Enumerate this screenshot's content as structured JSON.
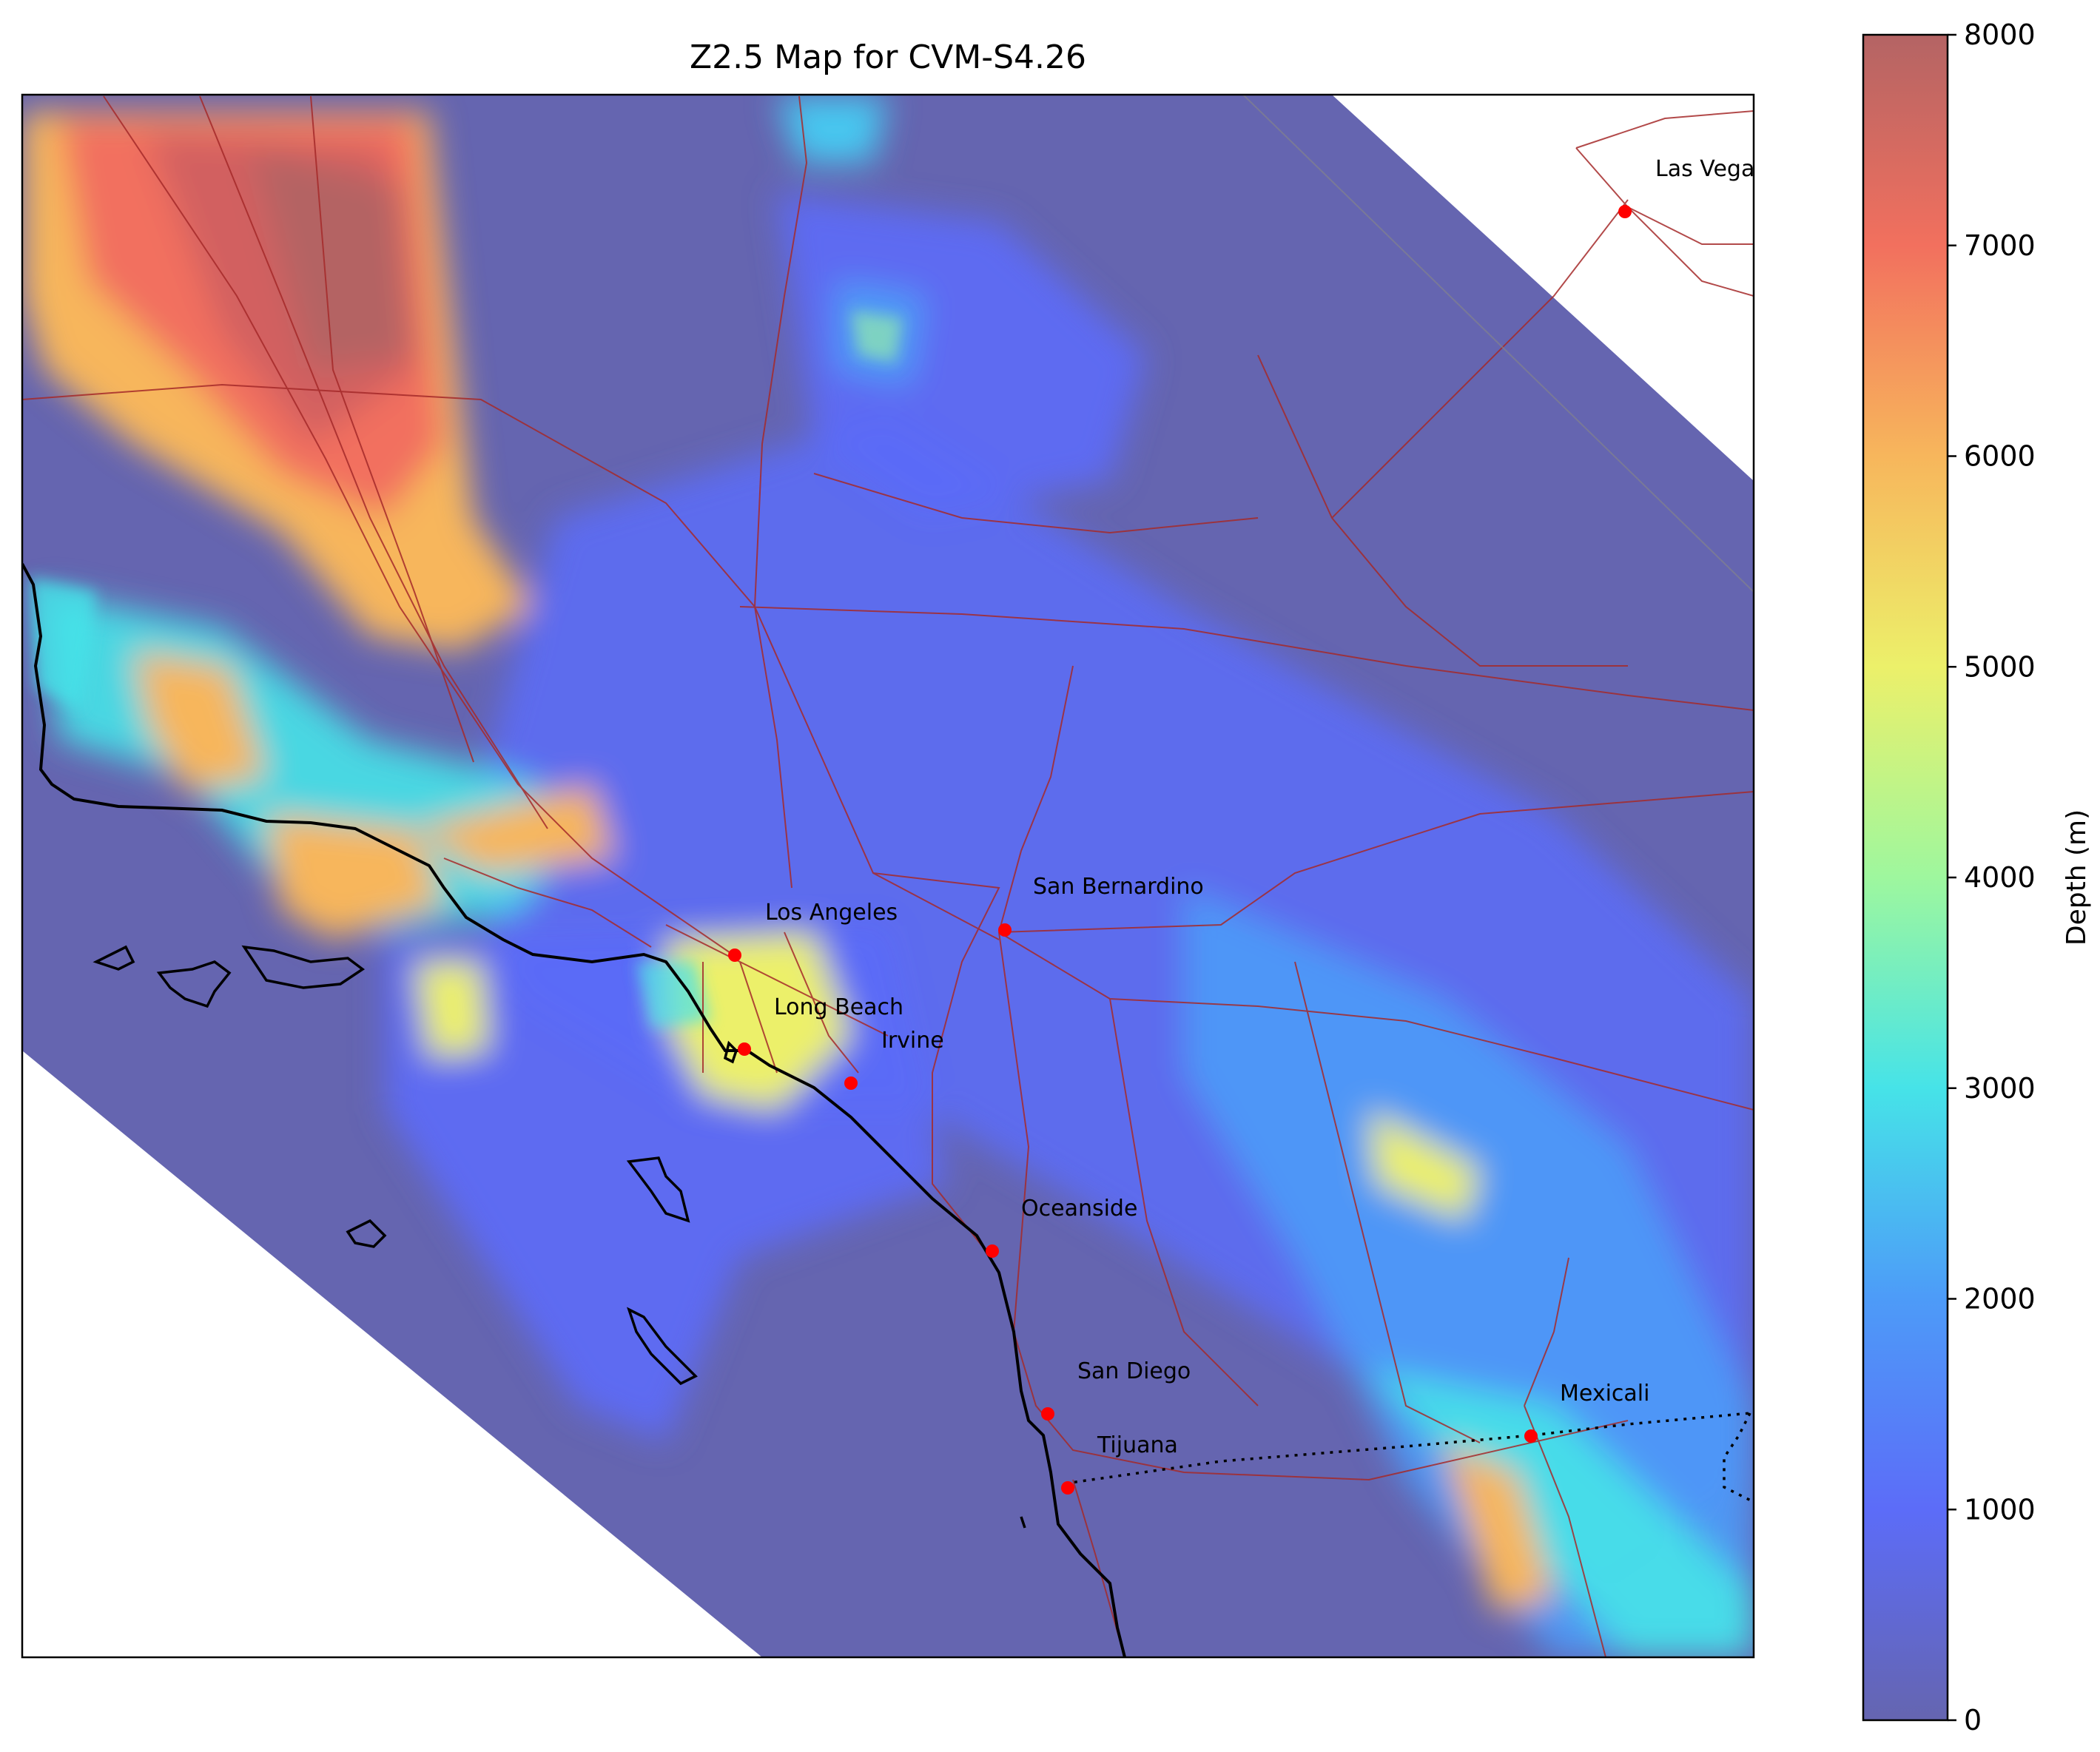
{
  "title": "Z2.5 Map for CVM-S4.26",
  "colorbar": {
    "label": "Depth (m)",
    "min": 0,
    "max": 8000,
    "ticks": [
      "0",
      "1000",
      "2000",
      "3000",
      "4000",
      "5000",
      "6000",
      "7000",
      "8000"
    ],
    "colors": [
      "#6565b0",
      "#5c6cf8",
      "#4d9bf8",
      "#46e3e8",
      "#9ef79e",
      "#ecf06a",
      "#f7b65c",
      "#f2705e",
      "#b46464"
    ]
  },
  "cities": [
    {
      "name": "Las Vegas"
    },
    {
      "name": "San Bernardino"
    },
    {
      "name": "Los Angeles"
    },
    {
      "name": "Long Beach"
    },
    {
      "name": "Irvine"
    },
    {
      "name": "Oceanside"
    },
    {
      "name": "San Diego"
    },
    {
      "name": "Tijuana"
    },
    {
      "name": "Mexicali"
    }
  ],
  "colors": {
    "marker": "#ff0000",
    "roads": "#a52a2a",
    "coastline": "#000000",
    "background": "#6565b0"
  }
}
